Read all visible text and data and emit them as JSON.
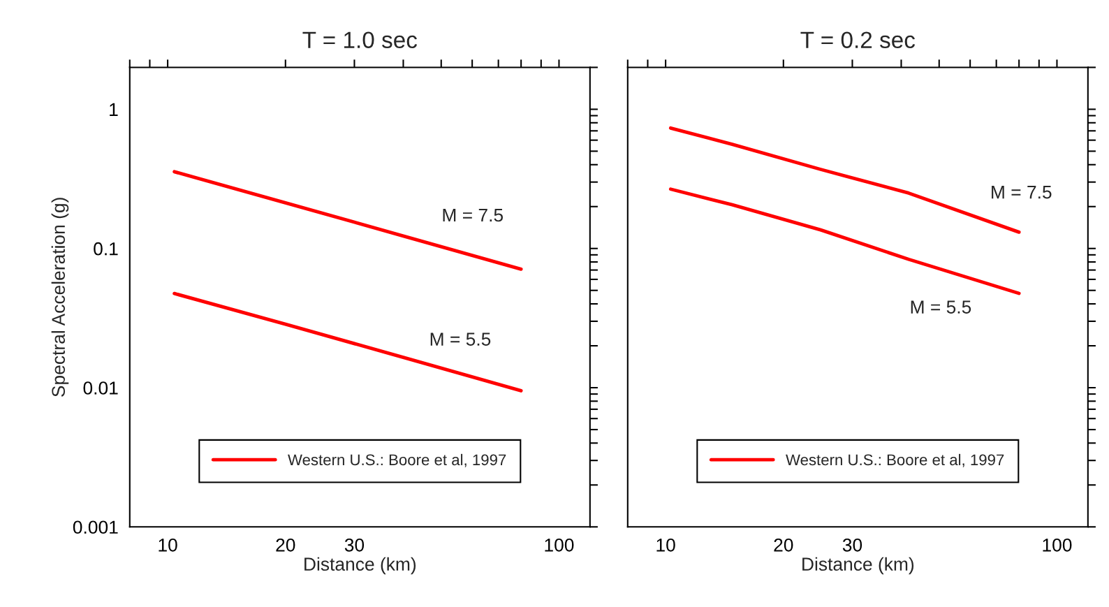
{
  "chart_data": [
    {
      "type": "line",
      "title": "T = 1.0 sec",
      "xlabel": "Distance (km)",
      "ylabel": "Spectral Acceleration (g)",
      "log": "xy",
      "xlim": [
        8,
        120
      ],
      "ylim": [
        0.001,
        2
      ],
      "xticks": [
        {
          "value": 8,
          "label": null
        },
        {
          "value": 9,
          "label": null
        },
        10,
        20,
        30,
        {
          "value": 40,
          "label": null
        },
        {
          "value": 50,
          "label": null
        },
        {
          "value": 60,
          "label": null
        },
        {
          "value": 70,
          "label": null
        },
        {
          "value": 80,
          "label": null
        },
        {
          "value": 90,
          "label": null
        },
        100
      ],
      "yticks": [
        0.001,
        {
          "value": 0.002,
          "label": null
        },
        {
          "value": 0.003,
          "label": null
        },
        {
          "value": 0.004,
          "label": null
        },
        {
          "value": 0.005,
          "label": null
        },
        {
          "value": 0.006,
          "label": null
        },
        {
          "value": 0.007,
          "label": null
        },
        {
          "value": 0.008,
          "label": null
        },
        {
          "value": 0.009,
          "label": null
        },
        0.01,
        {
          "value": 0.02,
          "label": null
        },
        {
          "value": 0.03,
          "label": null
        },
        {
          "value": 0.04,
          "label": null
        },
        {
          "value": 0.05,
          "label": null
        },
        {
          "value": 0.06,
          "label": null
        },
        {
          "value": 0.07,
          "label": null
        },
        {
          "value": 0.08,
          "label": null
        },
        {
          "value": 0.09,
          "label": null
        },
        0.1,
        {
          "value": 0.2,
          "label": null
        },
        {
          "value": 0.3,
          "label": null
        },
        {
          "value": 0.4,
          "label": null
        },
        {
          "value": 0.5,
          "label": null
        },
        {
          "value": 0.6,
          "label": null
        },
        {
          "value": 0.7,
          "label": null
        },
        {
          "value": 0.8,
          "label": null
        },
        {
          "value": 0.9,
          "label": null
        },
        1,
        {
          "value": 2,
          "label": null
        }
      ],
      "series": [
        {
          "name": "Western U.S.: Boore et al, 1997",
          "color": "#ff0000",
          "x": [
            10.4,
            20,
            40,
            80
          ],
          "values": [
            0.356,
            0.213,
            0.123,
            0.071
          ]
        },
        {
          "color": "#ff0000",
          "x": [
            10.4,
            20,
            40,
            80
          ],
          "values": [
            0.0475,
            0.0286,
            0.0165,
            0.0095
          ]
        }
      ],
      "annotations": [
        "M = 7.5",
        "M = 5.5"
      ],
      "legend": "bottom",
      "grid": false,
      "marker": "none",
      "line_style": "solid"
    },
    {
      "type": "line",
      "title": "T = 0.2 sec",
      "xlabel": "Distance (km)",
      "log": "xy",
      "xlim": [
        8,
        120
      ],
      "ylim": [
        0.001,
        2
      ],
      "tick_labels": "x",
      "xticks": [
        {
          "value": 8,
          "label": null
        },
        {
          "value": 9,
          "label": null
        },
        10,
        20,
        30,
        {
          "value": 40,
          "label": null
        },
        {
          "value": 50,
          "label": null
        },
        {
          "value": 60,
          "label": null
        },
        {
          "value": 70,
          "label": null
        },
        {
          "value": 80,
          "label": null
        },
        {
          "value": 90,
          "label": null
        },
        100
      ],
      "yticks": [
        0.001,
        {
          "value": 0.002,
          "label": null
        },
        {
          "value": 0.003,
          "label": null
        },
        {
          "value": 0.004,
          "label": null
        },
        {
          "value": 0.005,
          "label": null
        },
        {
          "value": 0.006,
          "label": null
        },
        {
          "value": 0.007,
          "label": null
        },
        {
          "value": 0.008,
          "label": null
        },
        {
          "value": 0.009,
          "label": null
        },
        0.01,
        {
          "value": 0.02,
          "label": null
        },
        {
          "value": 0.03,
          "label": null
        },
        {
          "value": 0.04,
          "label": null
        },
        {
          "value": 0.05,
          "label": null
        },
        {
          "value": 0.06,
          "label": null
        },
        {
          "value": 0.07,
          "label": null
        },
        {
          "value": 0.08,
          "label": null
        },
        {
          "value": 0.09,
          "label": null
        },
        0.1,
        {
          "value": 0.2,
          "label": null
        },
        {
          "value": 0.3,
          "label": null
        },
        {
          "value": 0.4,
          "label": null
        },
        {
          "value": 0.5,
          "label": null
        },
        {
          "value": 0.6,
          "label": null
        },
        {
          "value": 0.7,
          "label": null
        },
        {
          "value": 0.8,
          "label": null
        },
        {
          "value": 0.9,
          "label": null
        },
        1,
        {
          "value": 2,
          "label": null
        }
      ],
      "series": [
        {
          "name": "Western U.S.: Boore et al, 1997",
          "color": "#ff0000",
          "x": [
            10.3,
            14.8,
            24.9,
            41.8,
            80
          ],
          "values": [
            0.733,
            0.56,
            0.37,
            0.25,
            0.131
          ]
        },
        {
          "color": "#ff0000",
          "x": [
            10.3,
            14.8,
            24.9,
            41.8,
            80
          ],
          "values": [
            0.267,
            0.206,
            0.136,
            0.0836,
            0.0476
          ]
        }
      ],
      "annotations": [
        "M = 7.5",
        "M = 5.5"
      ],
      "legend": "bottom",
      "grid": false,
      "marker": "none",
      "line_style": "solid"
    }
  ]
}
